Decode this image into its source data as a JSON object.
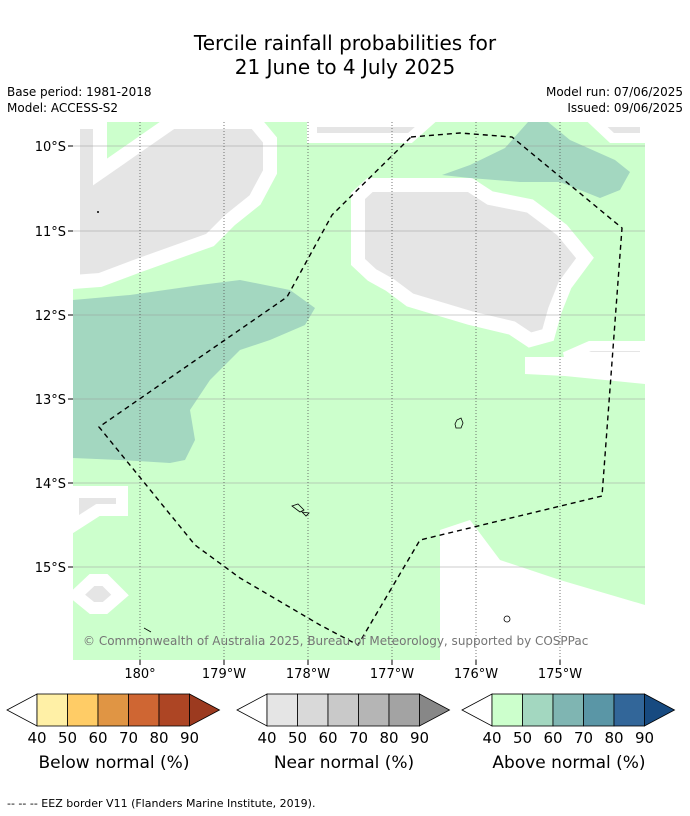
{
  "title": {
    "line1": "Tercile rainfall probabilities for",
    "line2": "21 June to 4 July 2025"
  },
  "meta": {
    "base_period": "Base period: 1981-2018",
    "model": "Model: ACCESS-S2",
    "model_run": "Model run: 07/06/2025",
    "issued": "Issued: 09/06/2025"
  },
  "map": {
    "lat_labels": [
      "10°S",
      "11°S",
      "12°S",
      "13°S",
      "14°S",
      "15°S"
    ],
    "lon_labels": [
      "180°",
      "179°W",
      "178°W",
      "177°W",
      "176°W",
      "175°W"
    ],
    "copyright": "© Commonwealth of Australia 2025, Bureau of Meteorology, supported by COSPPac",
    "colors": {
      "above_40_50": "#ccffcc",
      "above_50_60": "#a3d7c0",
      "near_40_50": "#e5e5e5",
      "background": "#ffffff",
      "copyright_text": "#757575"
    }
  },
  "colorbars": [
    {
      "name": "below",
      "label": "Below normal (%)",
      "ticks": [
        "40",
        "50",
        "60",
        "70",
        "80",
        "90"
      ],
      "colors": [
        "#ffffff",
        "#fff0a6",
        "#ffcc66",
        "#e09544",
        "#cf6633",
        "#ad4524",
        "#9c3a1f"
      ]
    },
    {
      "name": "near",
      "label": "Near normal (%)",
      "ticks": [
        "40",
        "50",
        "60",
        "70",
        "80",
        "90"
      ],
      "colors": [
        "#ffffff",
        "#e5e5e5",
        "#d9d9d9",
        "#c9c9c9",
        "#b5b5b5",
        "#a3a3a3",
        "#878787"
      ]
    },
    {
      "name": "above",
      "label": "Above normal (%)",
      "ticks": [
        "40",
        "50",
        "60",
        "70",
        "80",
        "90"
      ],
      "colors": [
        "#ffffff",
        "#ccffcc",
        "#a3d7c0",
        "#7fb5b2",
        "#5a96a6",
        "#326699",
        "#174a80"
      ]
    }
  ],
  "footer": "--  --  -- EEZ border V11 (Flanders Marine Institute, 2019)."
}
